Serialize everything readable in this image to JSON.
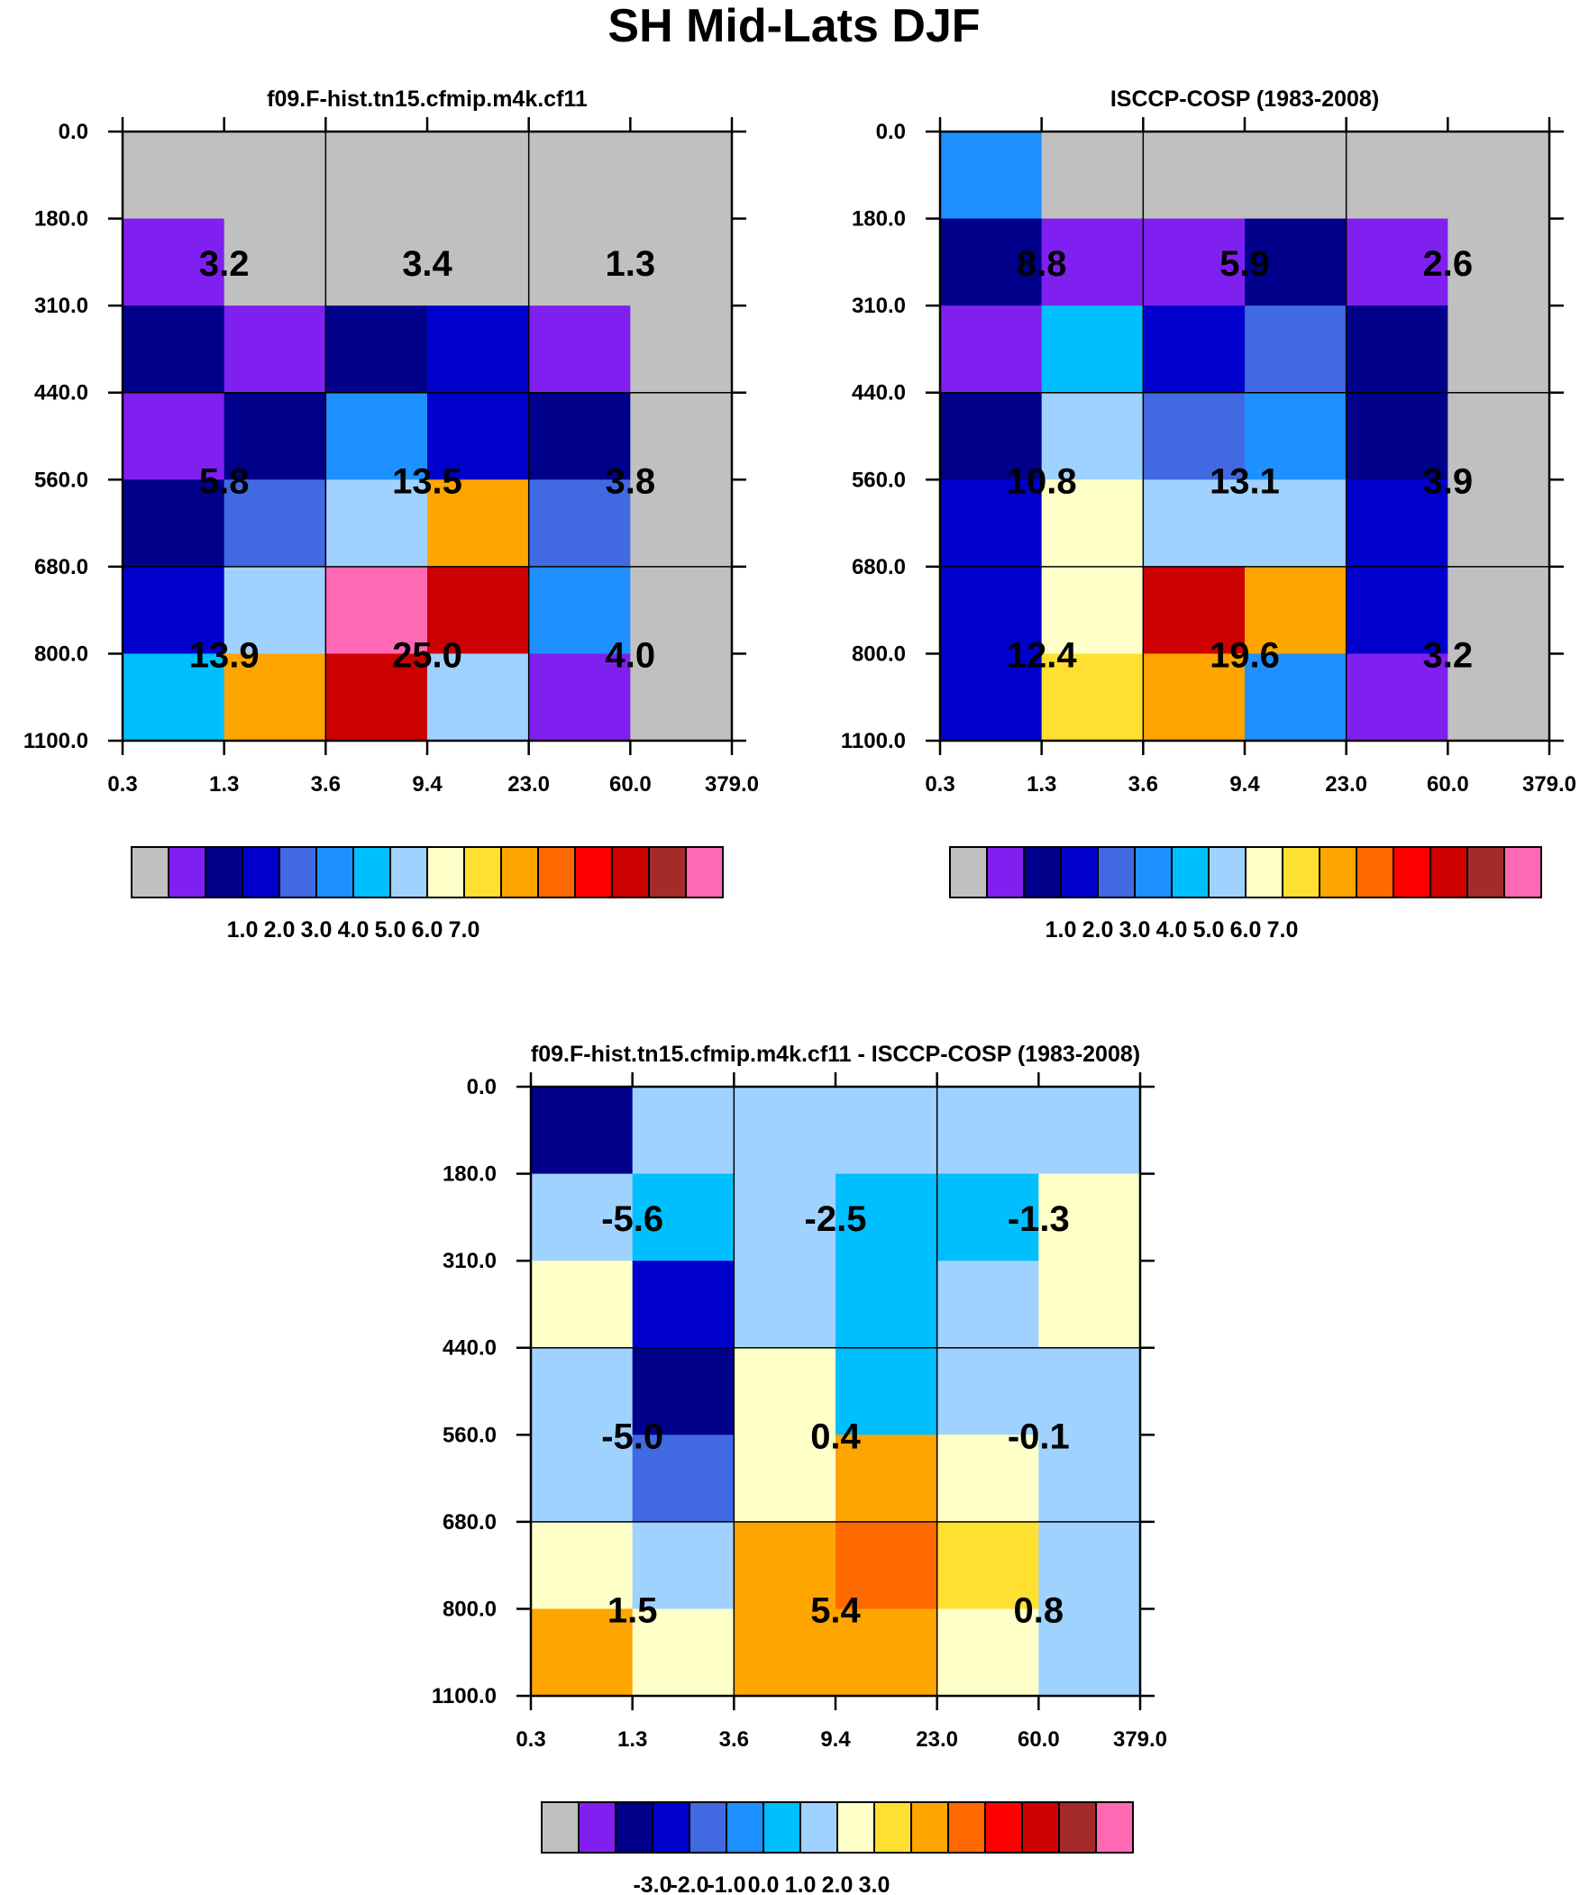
{
  "title": "SH Mid-Lats DJF",
  "colormaps": {
    "abs": [
      "#c0c0c0",
      "#8020f0",
      "#00008b",
      "#0000cd",
      "#4169e1",
      "#1e90ff",
      "#00bfff",
      "#a0d2ff",
      "#ffffc8",
      "#ffe030",
      "#ffa500",
      "#ff6a00",
      "#ff0000",
      "#cd0000",
      "#a52a2a",
      "#ff69b4"
    ],
    "diff": [
      "#c0c0c0",
      "#8020f0",
      "#00008b",
      "#0000cd",
      "#4169e1",
      "#1e90ff",
      "#00bfff",
      "#a0d2ff",
      "#ffffc8",
      "#ffe030",
      "#ffa500",
      "#ff6a00",
      "#ff0000",
      "#cd0000",
      "#a52a2a",
      "#ff69b4"
    ]
  },
  "chart_data": [
    {
      "type": "heatmap",
      "title": "f09.F-hist.tn15.cfmip.m4k.cf11",
      "x_ticks": [
        "0.3",
        "1.3",
        "3.6",
        "9.4",
        "23.0",
        "60.0",
        "379.0"
      ],
      "y_ticks": [
        "0.0",
        "180.0",
        "310.0",
        "440.0",
        "560.0",
        "680.0",
        "800.0",
        "1100.0"
      ],
      "cells": [
        [
          0,
          0,
          0,
          0,
          0,
          0
        ],
        [
          1,
          0,
          0,
          0,
          0,
          0
        ],
        [
          2,
          1,
          2,
          3,
          1,
          0
        ],
        [
          1,
          2,
          5,
          3,
          2,
          0
        ],
        [
          2,
          4,
          7,
          10,
          4,
          0
        ],
        [
          3,
          7,
          15,
          13,
          5,
          0
        ],
        [
          6,
          10,
          13,
          7,
          1,
          0
        ]
      ],
      "block_labels": [
        [
          "3.2",
          "3.4",
          "1.3"
        ],
        [
          "5.8",
          "13.5",
          "3.8"
        ],
        [
          "13.9",
          "25.0",
          "4.0"
        ]
      ],
      "colormap": "abs",
      "colorbar_labels": [
        "1.0",
        "2.0",
        "3.0",
        "4.0",
        "5.0",
        "6.0",
        "7.0"
      ]
    },
    {
      "type": "heatmap",
      "title": "ISCCP-COSP (1983-2008)",
      "x_ticks": [
        "0.3",
        "1.3",
        "3.6",
        "9.4",
        "23.0",
        "60.0",
        "379.0"
      ],
      "y_ticks": [
        "0.0",
        "180.0",
        "310.0",
        "440.0",
        "560.0",
        "680.0",
        "800.0",
        "1100.0"
      ],
      "cells": [
        [
          5,
          0,
          0,
          0,
          0,
          0
        ],
        [
          2,
          1,
          1,
          2,
          1,
          0
        ],
        [
          1,
          6,
          3,
          4,
          2,
          0
        ],
        [
          2,
          7,
          4,
          5,
          2,
          0
        ],
        [
          3,
          8,
          7,
          7,
          3,
          0
        ],
        [
          3,
          8,
          13,
          10,
          3,
          0
        ],
        [
          3,
          9,
          10,
          5,
          1,
          0
        ]
      ],
      "block_labels": [
        [
          "8.8",
          "5.9",
          "2.6"
        ],
        [
          "10.8",
          "13.1",
          "3.9"
        ],
        [
          "12.4",
          "19.6",
          "3.2"
        ]
      ],
      "colormap": "abs",
      "colorbar_labels": [
        "1.0",
        "2.0",
        "3.0",
        "4.0",
        "5.0",
        "6.0",
        "7.0"
      ]
    },
    {
      "type": "heatmap",
      "title": "f09.F-hist.tn15.cfmip.m4k.cf11 - ISCCP-COSP (1983-2008)",
      "x_ticks": [
        "0.3",
        "1.3",
        "3.6",
        "9.4",
        "23.0",
        "60.0",
        "379.0"
      ],
      "y_ticks": [
        "0.0",
        "180.0",
        "310.0",
        "440.0",
        "560.0",
        "680.0",
        "800.0",
        "1100.0"
      ],
      "cells": [
        [
          2,
          7,
          7,
          7,
          7,
          7
        ],
        [
          7,
          6,
          7,
          6,
          6,
          8
        ],
        [
          8,
          3,
          7,
          6,
          7,
          8
        ],
        [
          7,
          2,
          8,
          6,
          7,
          7
        ],
        [
          7,
          4,
          8,
          10,
          8,
          7
        ],
        [
          8,
          7,
          10,
          11,
          9,
          7
        ],
        [
          10,
          8,
          10,
          10,
          8,
          7
        ]
      ],
      "block_labels": [
        [
          "-5.6",
          "-2.5",
          "-1.3"
        ],
        [
          "-5.0",
          "0.4",
          "-0.1"
        ],
        [
          "1.5",
          "5.4",
          "0.8"
        ]
      ],
      "colormap": "diff",
      "colorbar_labels": [
        "-3.0",
        "-2.0",
        "-1.0",
        "0.0",
        "1.0",
        "2.0",
        "3.0"
      ]
    }
  ]
}
